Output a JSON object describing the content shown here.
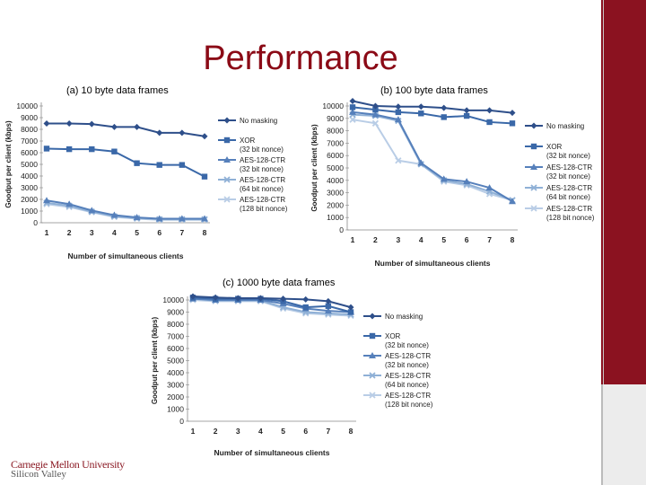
{
  "slide": {
    "title": "Performance"
  },
  "logo": {
    "line1": "Carnegie Mellon University",
    "line2": "Silicon Valley"
  },
  "colors": {
    "accent": "#8b1220",
    "series": [
      "#2e4f8a",
      "#3a68a8",
      "#5680bb",
      "#8fb0d6",
      "#b9cde6"
    ]
  },
  "chart_data": [
    {
      "type": "line",
      "caption": "(a) 10 byte data frames",
      "xlabel": "Number of simultaneous clients",
      "ylabel": "Goodput per client (kbps)",
      "x": [
        1,
        2,
        3,
        4,
        5,
        6,
        7,
        8
      ],
      "ylim": [
        0,
        10000
      ],
      "yticks": [
        0,
        1000,
        2000,
        3000,
        4000,
        5000,
        6000,
        7000,
        8000,
        9000,
        10000
      ],
      "series": [
        {
          "name": "No masking",
          "sub": "",
          "marker": "diamond",
          "values": [
            8500,
            8500,
            8450,
            8200,
            8200,
            7700,
            7700,
            7400
          ]
        },
        {
          "name": "XOR",
          "sub": "(32 bit nonce)",
          "marker": "square",
          "values": [
            6350,
            6300,
            6300,
            6100,
            5100,
            4950,
            4950,
            3950
          ]
        },
        {
          "name": "AES-128-CTR",
          "sub": "(32 bit nonce)",
          "marker": "triangle",
          "values": [
            1900,
            1600,
            1050,
            650,
            450,
            350,
            350,
            350
          ]
        },
        {
          "name": "AES-128-CTR",
          "sub": "(64 bit nonce)",
          "marker": "x",
          "values": [
            1700,
            1450,
            950,
            550,
            400,
            300,
            300,
            300
          ]
        },
        {
          "name": "AES-128-CTR",
          "sub": "(128 bit nonce)",
          "marker": "x",
          "values": [
            1600,
            1350,
            900,
            500,
            350,
            250,
            250,
            250
          ]
        }
      ]
    },
    {
      "type": "line",
      "caption": "(b) 100 byte data frames",
      "xlabel": "Number of simultaneous clients",
      "ylabel": "Goodput per client (kbps)",
      "x": [
        1,
        2,
        3,
        4,
        5,
        6,
        7,
        8
      ],
      "ylim": [
        0,
        10000
      ],
      "yticks": [
        0,
        1000,
        2000,
        3000,
        4000,
        5000,
        6000,
        7000,
        8000,
        9000,
        10000
      ],
      "series": [
        {
          "name": "No masking",
          "sub": "",
          "marker": "diamond",
          "values": [
            10400,
            10000,
            9950,
            9950,
            9850,
            9650,
            9650,
            9450
          ]
        },
        {
          "name": "XOR",
          "sub": "(32 bit nonce)",
          "marker": "square",
          "values": [
            9900,
            9700,
            9500,
            9400,
            9100,
            9200,
            8700,
            8600
          ]
        },
        {
          "name": "AES-128-CTR",
          "sub": "(32 bit nonce)",
          "marker": "triangle",
          "values": [
            9500,
            9300,
            8900,
            5400,
            4100,
            3900,
            3400,
            2300
          ]
        },
        {
          "name": "AES-128-CTR",
          "sub": "(64 bit nonce)",
          "marker": "x",
          "values": [
            9300,
            9200,
            8800,
            5300,
            4000,
            3700,
            3100,
            2400
          ]
        },
        {
          "name": "AES-128-CTR",
          "sub": "(128 bit nonce)",
          "marker": "x",
          "values": [
            8900,
            8600,
            5600,
            5300,
            3900,
            3600,
            2900,
            2400
          ]
        }
      ]
    },
    {
      "type": "line",
      "caption": "(c) 1000 byte data frames",
      "xlabel": "Number of simultaneous clients",
      "ylabel": "Goodput per client (kbps)",
      "x": [
        1,
        2,
        3,
        4,
        5,
        6,
        7,
        8
      ],
      "ylim": [
        0,
        10000
      ],
      "yticks": [
        0,
        1000,
        2000,
        3000,
        4000,
        5000,
        6000,
        7000,
        8000,
        9000,
        10000
      ],
      "series": [
        {
          "name": "No masking",
          "sub": "",
          "marker": "diamond",
          "values": [
            10300,
            10200,
            10150,
            10150,
            10100,
            10050,
            9900,
            9400
          ]
        },
        {
          "name": "XOR",
          "sub": "(32 bit nonce)",
          "marker": "square",
          "values": [
            10200,
            10100,
            10100,
            10100,
            9900,
            9400,
            9500,
            9000
          ]
        },
        {
          "name": "AES-128-CTR",
          "sub": "(32 bit nonce)",
          "marker": "triangle",
          "values": [
            10100,
            10000,
            10000,
            10000,
            9700,
            9300,
            9100,
            9000
          ]
        },
        {
          "name": "AES-128-CTR",
          "sub": "(64 bit nonce)",
          "marker": "x",
          "values": [
            10100,
            9950,
            9950,
            9950,
            9400,
            9000,
            8900,
            8800
          ]
        },
        {
          "name": "AES-128-CTR",
          "sub": "(128 bit nonce)",
          "marker": "x",
          "values": [
            10000,
            9900,
            9900,
            9900,
            9300,
            8900,
            8800,
            8700
          ]
        }
      ]
    }
  ]
}
